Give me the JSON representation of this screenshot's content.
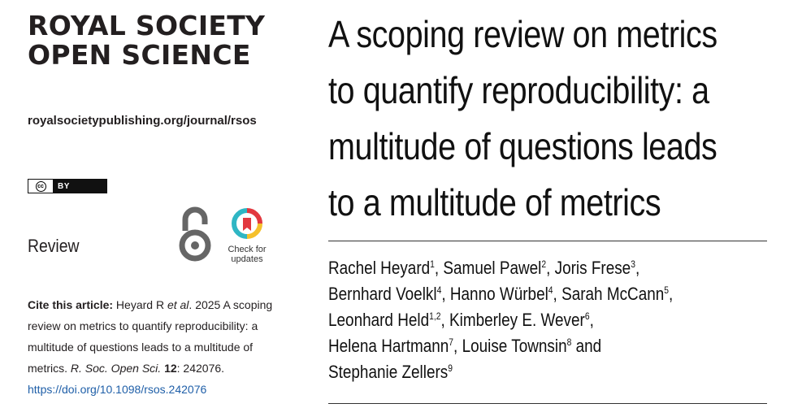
{
  "journal": {
    "name_line1": "ROYAL SOCIETY",
    "name_line2": "OPEN SCIENCE",
    "url": "royalsocietypublishing.org/journal/rsos"
  },
  "license": {
    "cc": "cc",
    "by": "BY"
  },
  "badges": {
    "open_access_icon": "open-access-lock-icon",
    "check_updates_line1": "Check for",
    "check_updates_line2": "updates"
  },
  "article_type": "Review",
  "citation": {
    "label": "Cite this article:",
    "authors": "Heyard R",
    "etal": "et al",
    "year_text": ". 2025 A scoping review on metrics to quantify reproducibility: a multitude of questions leads to a multitude of metrics.",
    "journal_abbrev": "R. Soc. Open Sci.",
    "volume": "12",
    "article_no": ": 242076.",
    "doi": "https://doi.org/10.1098/rsos.242076"
  },
  "title_lines": [
    "A scoping review on metrics",
    "to quantify reproducibility: a",
    "multitude of questions leads",
    "to a multitude of metrics"
  ],
  "authors": [
    {
      "name": "Rachel Heyard",
      "aff": "1"
    },
    {
      "name": "Samuel Pawel",
      "aff": "2"
    },
    {
      "name": "Joris Frese",
      "aff": "3"
    },
    {
      "name": "Bernhard Voelkl",
      "aff": "4"
    },
    {
      "name": "Hanno Würbel",
      "aff": "4"
    },
    {
      "name": "Sarah McCann",
      "aff": "5"
    },
    {
      "name": "Leonhard Held",
      "aff": "1,2"
    },
    {
      "name": "Kimberley E. Wever",
      "aff": "6"
    },
    {
      "name": "Helena Hartmann",
      "aff": "7"
    },
    {
      "name": "Louise Townsin",
      "aff": "8"
    },
    {
      "name": "Stephanie Zellers",
      "aff": "9"
    }
  ],
  "colors": {
    "doi_link": "#1f5fa8",
    "check_ring_red": "#e2383f",
    "check_ring_yellow": "#f5c02b",
    "check_ring_teal": "#2fb6c4"
  }
}
